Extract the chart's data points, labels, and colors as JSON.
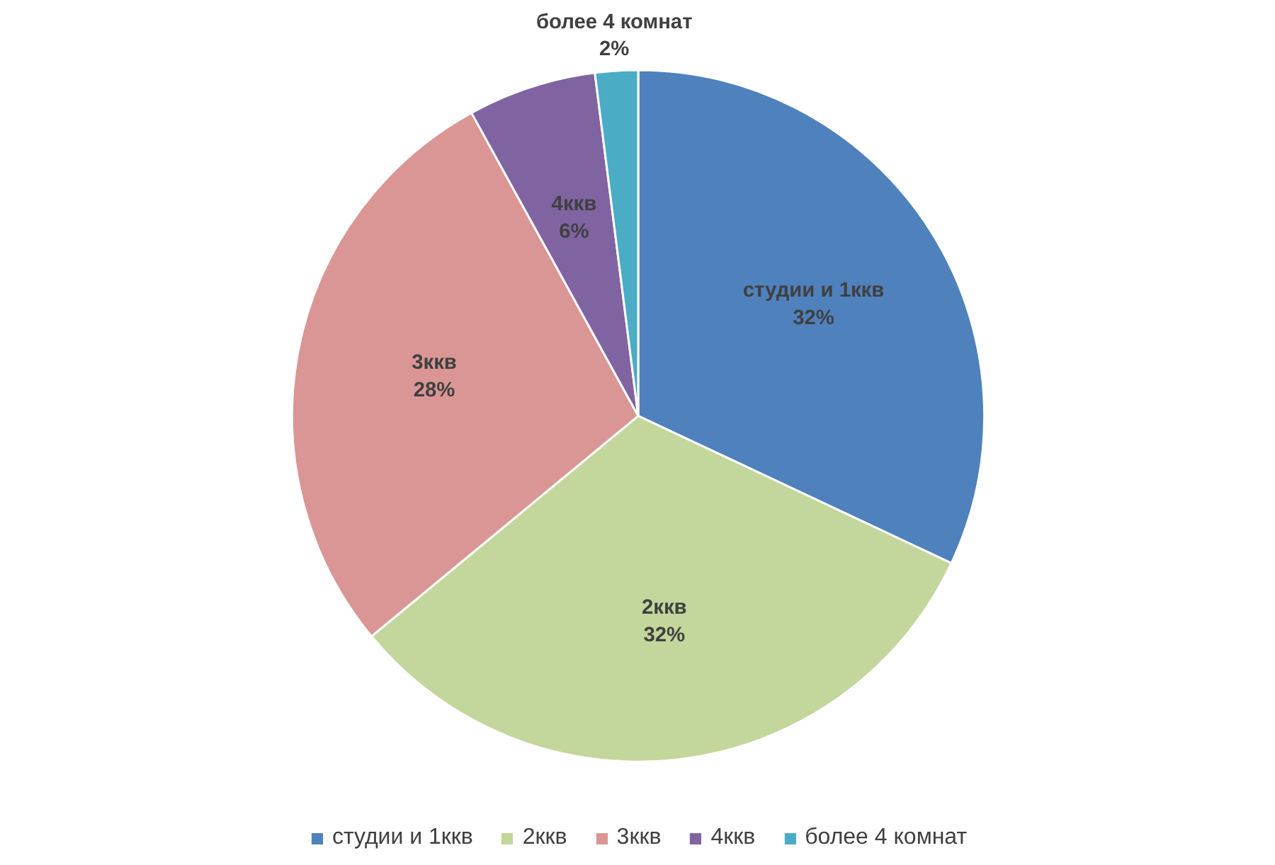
{
  "chart_data": {
    "type": "pie",
    "categories": [
      "студии и 1ккв",
      "2ккв",
      "3ккв",
      "4ккв",
      "более 4 комнат"
    ],
    "values": [
      32,
      32,
      28,
      6,
      2
    ],
    "value_labels": [
      "32%",
      "32%",
      "28%",
      "6%",
      "2%"
    ],
    "colors": [
      "#4f81bd",
      "#c3d69b",
      "#da9694",
      "#8064a2",
      "#4bacc6"
    ],
    "legend": "bottom"
  }
}
